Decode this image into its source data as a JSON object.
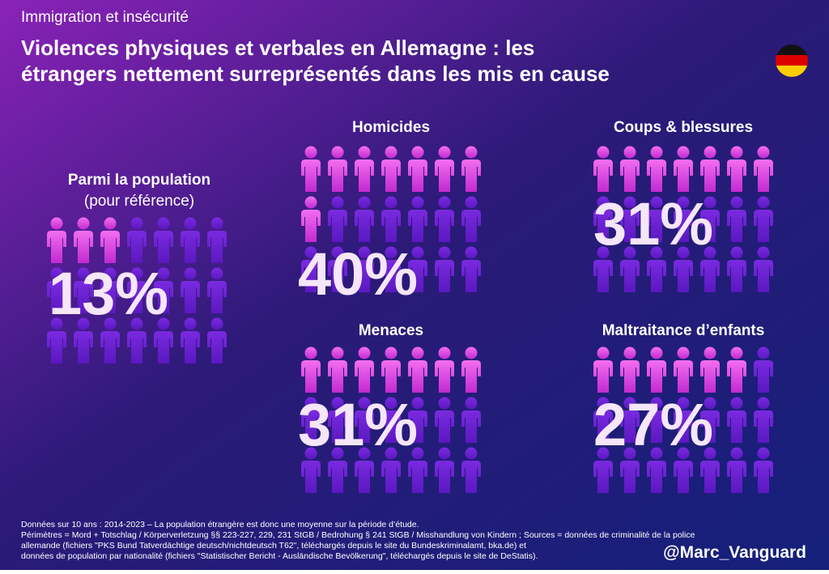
{
  "header": {
    "topic": "Immigration et insécurité",
    "title": [
      "Violences physiques et verbales en Allemagne : les",
      "étrangers nettement surreprésentés dans les mis en cause"
    ]
  },
  "chart_data": [
    {
      "type": "pictogram",
      "title": "Parmi la population",
      "subtitle": "(pour référence)",
      "values": [
        13
      ],
      "value_labels": [
        "13%"
      ]
    },
    {
      "type": "pictogram",
      "title": "Homicides",
      "values": [
        40
      ],
      "value_labels": [
        "40%"
      ]
    },
    {
      "type": "pictogram",
      "title": "Coups & blessures",
      "values": [
        31
      ],
      "value_labels": [
        "31%"
      ]
    },
    {
      "type": "pictogram",
      "title": "Menaces",
      "values": [
        31
      ],
      "value_labels": [
        "31%"
      ]
    },
    {
      "type": "pictogram",
      "title": "Maltraitance d’enfants",
      "values": [
        27
      ],
      "value_labels": [
        "27%"
      ]
    }
  ],
  "footer": {
    "notes": [
      "Données sur 10 ans : 2014-2023 – La population étrangère est donc une moyenne sur la période d’étude.",
      "Périmètres = Mord + Totschlag / Körperverletzung §§ 223-227, 229, 231 StGB / Bedrohung § 241 StGB / Misshandlung von Kindern ; Sources = données de criminalité de la police",
      "allemande (fichiers \"PKS Bund Tatverdächtige deutsch/nichtdeutsch T62\", téléchargés depuis le site du Bundeskriminalamt, bka.de) et",
      "données de population par nationalité (fichiers \"Statistischer Bericht - Ausländische Bevölkerung\", téléchargés depuis le site de DeStatis)."
    ],
    "handle": "@Marc_Vanguard"
  }
}
